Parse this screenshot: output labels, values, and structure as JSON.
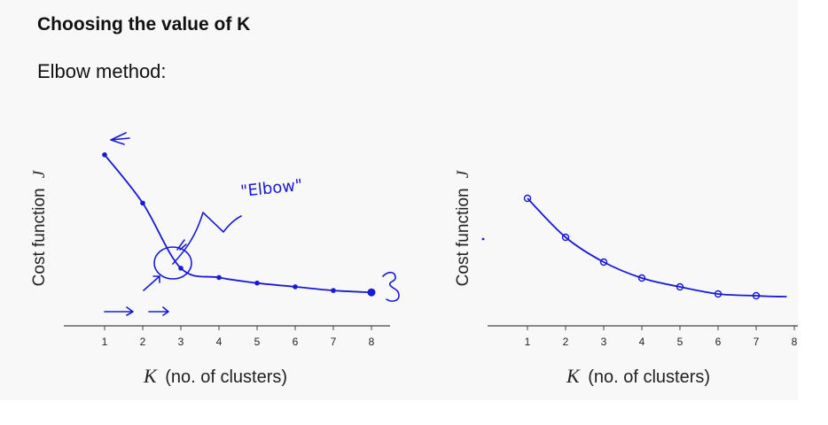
{
  "slide": {
    "title": "Choosing the value of K",
    "subtitle": "Elbow method:"
  },
  "colors": {
    "ink": "#1a1ad6",
    "axis": "#222222",
    "background": "#f8f8f8"
  },
  "chart_data": [
    {
      "type": "line",
      "ylabel_text": "Cost function",
      "ylabel_symbol": "J",
      "xlabel_symbol": "K",
      "xlabel_text": "(no. of clusters)",
      "x": [
        1,
        2,
        3,
        4,
        5,
        6,
        7,
        8
      ],
      "tick_labels": [
        "1",
        "2",
        "3",
        "4",
        "5",
        "6",
        "7",
        "8"
      ],
      "values": [
        4.6,
        3.3,
        1.55,
        1.3,
        1.15,
        1.05,
        0.95,
        0.9
      ],
      "xlim": [
        0,
        8.4
      ],
      "ylim": [
        0,
        5.2
      ],
      "annotations": [
        "\"Elbow\""
      ]
    },
    {
      "type": "line",
      "ylabel_text": "Cost function",
      "ylabel_symbol": "J",
      "xlabel_symbol": "K",
      "xlabel_text": "(no. of clusters)",
      "x": [
        1,
        2,
        3,
        4,
        5,
        6,
        7
      ],
      "tick_labels": [
        "1",
        "2",
        "3",
        "4",
        "5",
        "6",
        "7",
        "8"
      ],
      "values": [
        3.6,
        2.5,
        1.8,
        1.35,
        1.1,
        0.9,
        0.85
      ],
      "xlim": [
        0,
        8.4
      ],
      "ylim": [
        0,
        5.2
      ]
    }
  ]
}
